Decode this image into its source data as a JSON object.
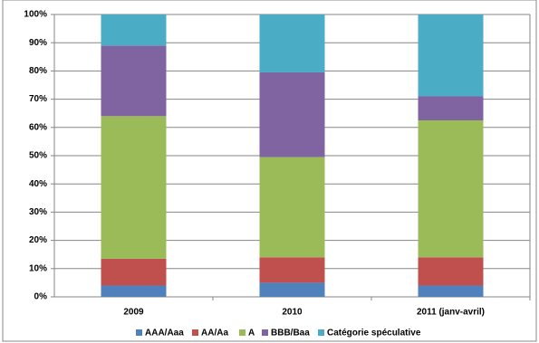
{
  "chart_data": {
    "type": "stacked-bar",
    "categories": [
      "2009",
      "2010",
      "2011 (janv-avril)"
    ],
    "series": [
      {
        "name": "AAA/Aaa",
        "color": "#4f81bd",
        "values": [
          4,
          5,
          4
        ]
      },
      {
        "name": "AA/Aa",
        "color": "#c0504d",
        "values": [
          9.5,
          9,
          10
        ]
      },
      {
        "name": "A",
        "color": "#9bbb59",
        "values": [
          50.5,
          35.5,
          48.5
        ]
      },
      {
        "name": "BBB/Baa",
        "color": "#8064a2",
        "values": [
          25,
          30,
          8.5
        ]
      },
      {
        "name": "Catégorie spéculative",
        "color": "#4bacc6",
        "values": [
          11,
          20.5,
          29
        ]
      }
    ],
    "ylim": [
      0,
      100
    ],
    "yticks": [
      {
        "value": 0,
        "label": "0%"
      },
      {
        "value": 10,
        "label": "10%"
      },
      {
        "value": 20,
        "label": "20%"
      },
      {
        "value": 30,
        "label": "30%"
      },
      {
        "value": 40,
        "label": "40%"
      },
      {
        "value": 50,
        "label": "50%"
      },
      {
        "value": 60,
        "label": "60%"
      },
      {
        "value": 70,
        "label": "70%"
      },
      {
        "value": 80,
        "label": "80%"
      },
      {
        "value": 90,
        "label": "90%"
      },
      {
        "value": 100,
        "label": "100%"
      }
    ],
    "grid": true,
    "legend": "bottom"
  }
}
